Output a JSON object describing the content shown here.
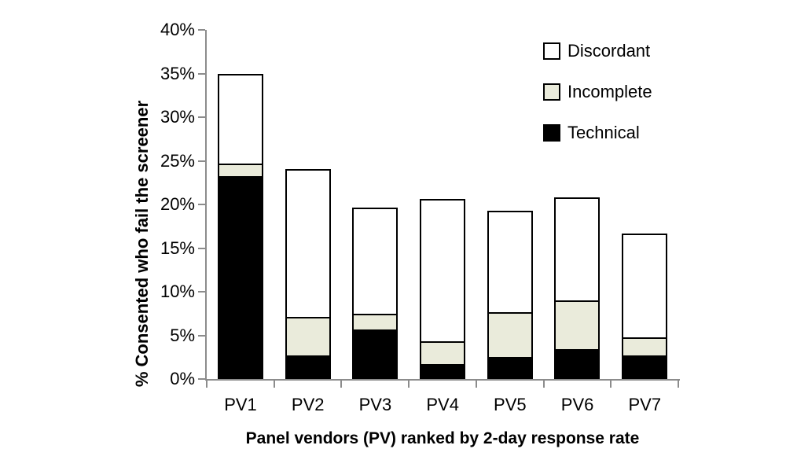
{
  "chart_data": {
    "type": "bar",
    "stacked": true,
    "title": "",
    "xlabel": "Panel vendors (PV) ranked by 2-day response rate",
    "ylabel": "% Consented who fail the screener",
    "categories": [
      "PV1",
      "PV2",
      "PV3",
      "PV4",
      "PV5",
      "PV6",
      "PV7"
    ],
    "series": [
      {
        "name": "Technical",
        "color": "#000000",
        "values": [
          23.2,
          2.7,
          5.7,
          1.7,
          2.5,
          3.4,
          2.7
        ]
      },
      {
        "name": "Incomplete",
        "color": "#eaebdb",
        "values": [
          1.5,
          4.4,
          1.8,
          2.6,
          5.2,
          5.6,
          2.1
        ]
      },
      {
        "name": "Discordant",
        "color": "#ffffff",
        "values": [
          10.3,
          17.0,
          12.1,
          16.3,
          11.6,
          11.8,
          11.9
        ]
      }
    ],
    "totals": [
      35.0,
      24.1,
      19.6,
      20.6,
      19.3,
      20.8,
      16.7
    ],
    "ylim": [
      0,
      40
    ],
    "y_tick_labels": [
      "0%",
      "5%",
      "10%",
      "15%",
      "20%",
      "25%",
      "30%",
      "35%",
      "40%"
    ],
    "y_tick_values": [
      0,
      5,
      10,
      15,
      20,
      25,
      30,
      35,
      40
    ],
    "grid": false,
    "legend_position": "top-right-inside",
    "legend": {
      "items": [
        {
          "label": "Discordant",
          "swatch": "#ffffff",
          "border": "#000000"
        },
        {
          "label": "Incomplete",
          "swatch": "#eaebdb",
          "border": "#000000"
        },
        {
          "label": "Technical",
          "swatch": "#000000",
          "border": "#000000"
        }
      ]
    },
    "colors": {
      "axis": "#8c8c8c",
      "bar_border": "#000000",
      "background": "#ffffff"
    }
  }
}
